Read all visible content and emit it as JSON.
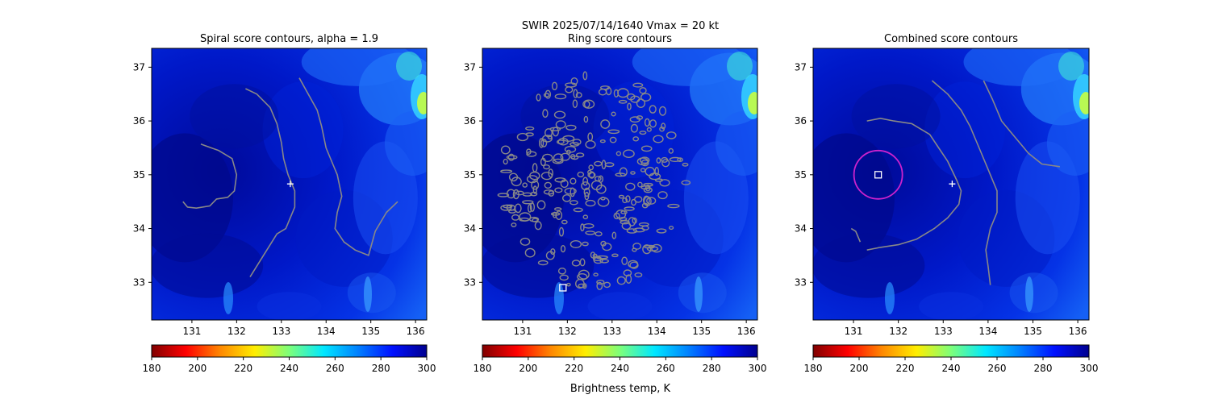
{
  "suptitle_line1": "SWIR  2025/07/14/1640    Vmax = 20 kt",
  "colorbar_label": "Brightness temp, K",
  "chart_data": [
    {
      "type": "heatmap",
      "title": "Spiral score contours, alpha =  1.9",
      "xlim": [
        130.1,
        136.25
      ],
      "ylim": [
        32.3,
        37.35
      ],
      "xticks": [
        131,
        132,
        133,
        134,
        135,
        136
      ],
      "yticks": [
        33,
        34,
        35,
        36,
        37
      ],
      "colormap": "jet_r",
      "clim": [
        180,
        300
      ],
      "contour_color": "#888888",
      "markers": [
        {
          "type": "plus",
          "lon": 133.2,
          "lat": 34.83,
          "color": "#ffffff"
        }
      ],
      "contours": [
        [
          [
            131.2,
            35.57
          ],
          [
            131.6,
            35.45
          ],
          [
            131.9,
            35.3
          ],
          [
            132.0,
            35.0
          ],
          [
            131.95,
            34.7
          ],
          [
            131.8,
            34.58
          ],
          [
            131.55,
            34.55
          ],
          [
            131.4,
            34.42
          ],
          [
            131.1,
            34.38
          ],
          [
            130.9,
            34.4
          ],
          [
            130.8,
            34.5
          ]
        ],
        [
          [
            132.2,
            36.6
          ],
          [
            132.45,
            36.5
          ],
          [
            132.75,
            36.25
          ],
          [
            132.9,
            35.95
          ],
          [
            133.0,
            35.6
          ],
          [
            133.05,
            35.3
          ],
          [
            133.15,
            35.0
          ],
          [
            133.3,
            34.7
          ],
          [
            133.3,
            34.4
          ],
          [
            133.1,
            34.0
          ],
          [
            132.9,
            33.9
          ],
          [
            132.6,
            33.5
          ],
          [
            132.3,
            33.1
          ]
        ],
        [
          [
            133.4,
            36.8
          ],
          [
            133.6,
            36.5
          ],
          [
            133.8,
            36.2
          ],
          [
            133.9,
            35.9
          ],
          [
            134.0,
            35.5
          ],
          [
            134.25,
            35.0
          ],
          [
            134.35,
            34.6
          ],
          [
            134.25,
            34.3
          ],
          [
            134.2,
            34.0
          ],
          [
            134.4,
            33.75
          ],
          [
            134.65,
            33.6
          ],
          [
            134.95,
            33.5
          ],
          [
            135.1,
            33.95
          ],
          [
            135.35,
            34.3
          ],
          [
            135.6,
            34.5
          ]
        ]
      ]
    },
    {
      "type": "heatmap",
      "title": "Ring score contours",
      "xlim": [
        130.1,
        136.25
      ],
      "ylim": [
        32.3,
        37.35
      ],
      "xticks": [
        131,
        132,
        133,
        134,
        135,
        136
      ],
      "yticks": [
        33,
        34,
        35,
        36,
        37
      ],
      "colormap": "jet_r",
      "clim": [
        180,
        300
      ],
      "contour_color": "#888888",
      "markers": [
        {
          "type": "square",
          "lon": 131.9,
          "lat": 32.9,
          "color": "#ffffff"
        }
      ],
      "contours": []
    },
    {
      "type": "heatmap",
      "title": "Combined score contours",
      "xlim": [
        130.1,
        136.25
      ],
      "ylim": [
        32.3,
        37.35
      ],
      "xticks": [
        131,
        132,
        133,
        134,
        135,
        136
      ],
      "yticks": [
        33,
        34,
        35,
        36,
        37
      ],
      "colormap": "jet_r",
      "clim": [
        180,
        300
      ],
      "contour_color": "#888888",
      "markers": [
        {
          "type": "plus",
          "lon": 133.2,
          "lat": 34.83,
          "color": "#ffffff"
        },
        {
          "type": "square",
          "lon": 131.55,
          "lat": 35.0,
          "color": "#ffffff"
        },
        {
          "type": "circle",
          "lon": 131.55,
          "lat": 35.0,
          "radius_deg": 0.54,
          "color": "#cc22cc"
        }
      ],
      "contours": [
        [
          [
            131.3,
            36.0
          ],
          [
            131.6,
            36.05
          ],
          [
            131.9,
            36.0
          ],
          [
            132.3,
            35.95
          ],
          [
            132.7,
            35.75
          ],
          [
            132.9,
            35.5
          ],
          [
            133.1,
            35.25
          ],
          [
            133.3,
            34.9
          ],
          [
            133.4,
            34.7
          ],
          [
            133.35,
            34.45
          ],
          [
            133.1,
            34.2
          ],
          [
            132.8,
            34.0
          ],
          [
            132.4,
            33.8
          ],
          [
            132.0,
            33.7
          ],
          [
            131.6,
            33.65
          ],
          [
            131.3,
            33.6
          ]
        ],
        [
          [
            130.95,
            34.0
          ],
          [
            131.05,
            33.95
          ],
          [
            131.15,
            33.75
          ]
        ],
        [
          [
            132.75,
            36.75
          ],
          [
            133.1,
            36.5
          ],
          [
            133.4,
            36.2
          ],
          [
            133.6,
            35.9
          ],
          [
            133.8,
            35.5
          ],
          [
            134.0,
            35.1
          ],
          [
            134.2,
            34.7
          ],
          [
            134.2,
            34.3
          ],
          [
            134.05,
            34.0
          ],
          [
            133.95,
            33.6
          ],
          [
            134.0,
            33.3
          ],
          [
            134.05,
            32.95
          ]
        ],
        [
          [
            133.9,
            36.75
          ],
          [
            134.1,
            36.4
          ],
          [
            134.3,
            36.0
          ],
          [
            134.6,
            35.7
          ],
          [
            134.9,
            35.4
          ],
          [
            135.2,
            35.2
          ],
          [
            135.6,
            35.15
          ]
        ]
      ]
    }
  ],
  "colorbar": {
    "ticks": [
      180,
      200,
      220,
      240,
      260,
      280,
      300
    ],
    "stops": [
      "#800000",
      "#ff0000",
      "#ff8800",
      "#ffee00",
      "#7dff7a",
      "#00e8ff",
      "#0080ff",
      "#0010ff",
      "#00008f"
    ]
  }
}
